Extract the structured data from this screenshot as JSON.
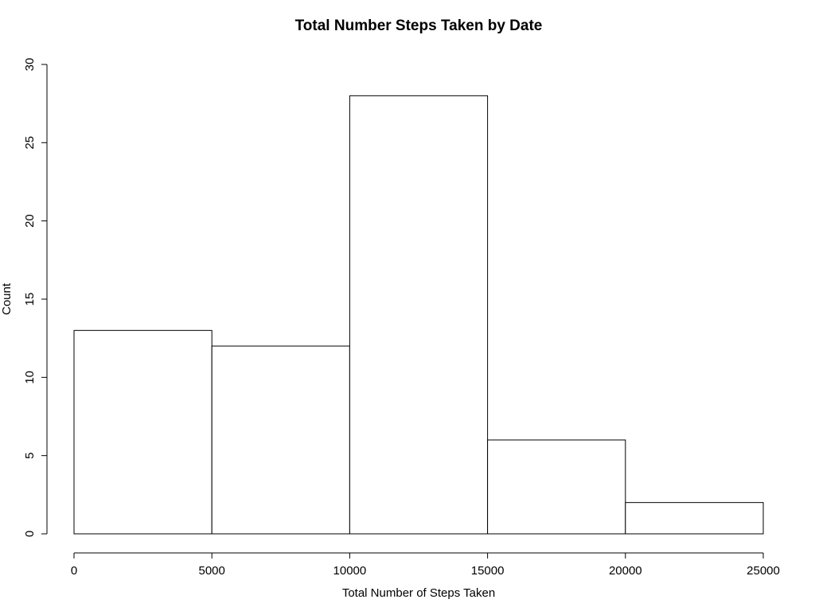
{
  "chart_data": {
    "type": "bar",
    "title": "Total Number Steps Taken by Date",
    "xlabel": "Total Number of Steps Taken",
    "ylabel": "Count",
    "bins": [
      {
        "from": 0,
        "to": 5000,
        "count": 13
      },
      {
        "from": 5000,
        "to": 10000,
        "count": 12
      },
      {
        "from": 10000,
        "to": 15000,
        "count": 28
      },
      {
        "from": 15000,
        "to": 20000,
        "count": 6
      },
      {
        "from": 20000,
        "to": 25000,
        "count": 2
      }
    ],
    "xlim": [
      0,
      25000
    ],
    "ylim": [
      0,
      30
    ],
    "x_ticks": [
      0,
      5000,
      10000,
      15000,
      20000,
      25000
    ],
    "x_tick_labels": [
      "0",
      "5000",
      "10000",
      "15000",
      "20000",
      "25000"
    ],
    "y_ticks": [
      0,
      5,
      10,
      15,
      20,
      25,
      30
    ],
    "y_tick_labels": [
      "0",
      "5",
      "10",
      "15",
      "20",
      "25",
      "30"
    ],
    "grid": false,
    "legend": "none",
    "bar_fill": "#ffffff",
    "bar_stroke": "#000000"
  }
}
